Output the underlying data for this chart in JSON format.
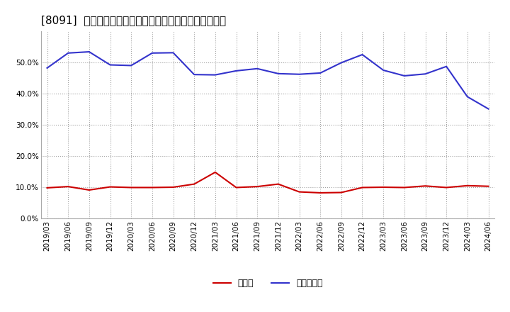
{
  "title": "[8091]  現頲金、有利子負債の総資産に対する比率の推移",
  "dates": [
    "2019/03",
    "2019/06",
    "2019/09",
    "2019/12",
    "2020/03",
    "2020/06",
    "2020/09",
    "2020/12",
    "2021/03",
    "2021/06",
    "2021/09",
    "2021/12",
    "2022/03",
    "2022/06",
    "2022/09",
    "2022/12",
    "2023/03",
    "2023/06",
    "2023/09",
    "2023/12",
    "2024/03",
    "2024/06"
  ],
  "cash": [
    0.098,
    0.102,
    0.091,
    0.101,
    0.099,
    0.099,
    0.1,
    0.11,
    0.148,
    0.099,
    0.102,
    0.11,
    0.085,
    0.082,
    0.083,
    0.099,
    0.1,
    0.099,
    0.104,
    0.099,
    0.105,
    0.103
  ],
  "debt": [
    0.482,
    0.53,
    0.534,
    0.492,
    0.49,
    0.53,
    0.531,
    0.461,
    0.46,
    0.473,
    0.48,
    0.464,
    0.462,
    0.466,
    0.499,
    0.525,
    0.475,
    0.457,
    0.463,
    0.487,
    0.39,
    0.351
  ],
  "cash_color": "#cc0000",
  "debt_color": "#3333cc",
  "background_color": "#ffffff",
  "plot_bg_color": "#ffffff",
  "grid_color": "#999999",
  "legend_cash": "現頲金",
  "legend_debt": "有利子負債",
  "ylim": [
    0.0,
    0.6
  ],
  "yticks": [
    0.0,
    0.1,
    0.2,
    0.3,
    0.4,
    0.5
  ],
  "title_fontsize": 11,
  "tick_fontsize": 7.5,
  "legend_fontsize": 9
}
